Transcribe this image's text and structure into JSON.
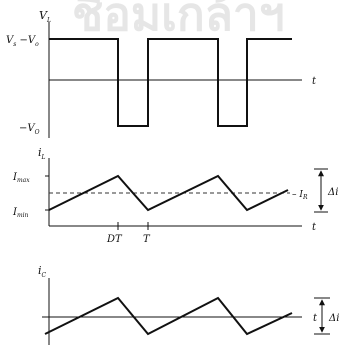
{
  "watermark": "ชื่อมเกล้าฯ",
  "panel_vl": {
    "axis_label": "V",
    "axis_label_sub": "L",
    "high_level": "V",
    "high_level_sub": "s",
    "high_level_mid": " −V",
    "high_level_sub2": "o",
    "low_level": "−V",
    "low_level_sub": "O",
    "time_label": "t"
  },
  "panel_il": {
    "axis_label": "i",
    "axis_label_sub": "L",
    "max_label": "I",
    "max_label_sub": "max",
    "min_label": "I",
    "min_label_sub": "min",
    "avg_label": "I",
    "avg_label_sub": "R",
    "dt_label": "DT",
    "t_label": "T",
    "time_label": "t",
    "ripple_label": "Δi"
  },
  "panel_ic": {
    "axis_label": "i",
    "axis_label_sub": "C",
    "time_label": "t",
    "ripple_label": "Δi"
  }
}
